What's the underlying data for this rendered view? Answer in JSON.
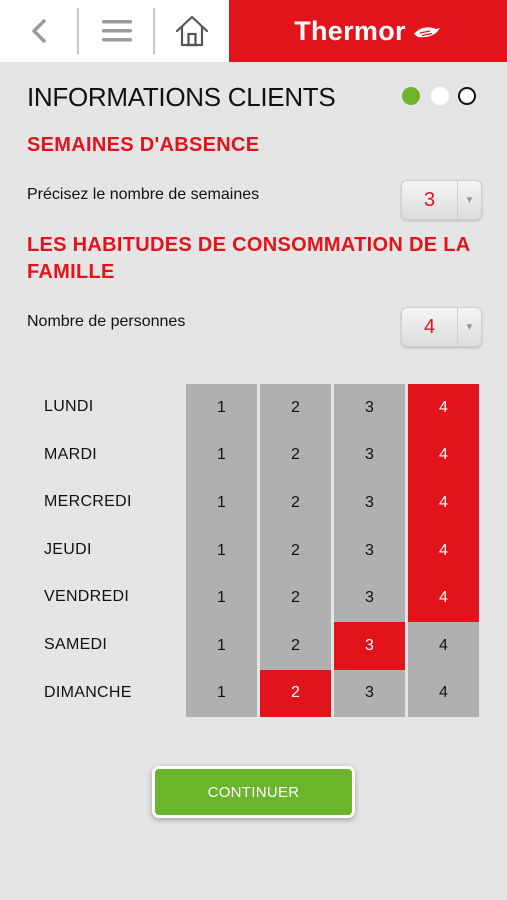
{
  "header": {
    "brand_name": "Thermor",
    "icons": {
      "back": "chevron-left-icon",
      "menu": "hamburger-menu-icon",
      "home": "home-icon",
      "brand": "thermor-logo-mark"
    },
    "brand_color": "#e3131b"
  },
  "page": {
    "title": "INFORMATIONS CLIENTS",
    "step_current": 1,
    "step_total": 3
  },
  "absence": {
    "section_title": "SEMAINES D'ABSENCE",
    "label": "Précisez le nombre de semaines",
    "value": "3"
  },
  "habits": {
    "section_title": "LES HABITUDES DE CONSOMMATION DE LA FAMILLE",
    "persons_label": "Nombre de personnes",
    "persons_value": "4",
    "options": [
      "1",
      "2",
      "3",
      "4"
    ],
    "days": [
      {
        "label": "LUNDI",
        "selected": "4"
      },
      {
        "label": "MARDI",
        "selected": "4"
      },
      {
        "label": "MERCREDI",
        "selected": "4"
      },
      {
        "label": "JEUDI",
        "selected": "4"
      },
      {
        "label": "VENDREDI",
        "selected": "4"
      },
      {
        "label": "SAMEDI",
        "selected": "3"
      },
      {
        "label": "DIMANCHE",
        "selected": "2"
      }
    ]
  },
  "actions": {
    "continue_label": "CONTINUER"
  },
  "colors": {
    "accent_red": "#e3131b",
    "accent_green": "#6bb52c",
    "cell_grey": "#b0b0b0",
    "background": "#e5e5e5"
  }
}
